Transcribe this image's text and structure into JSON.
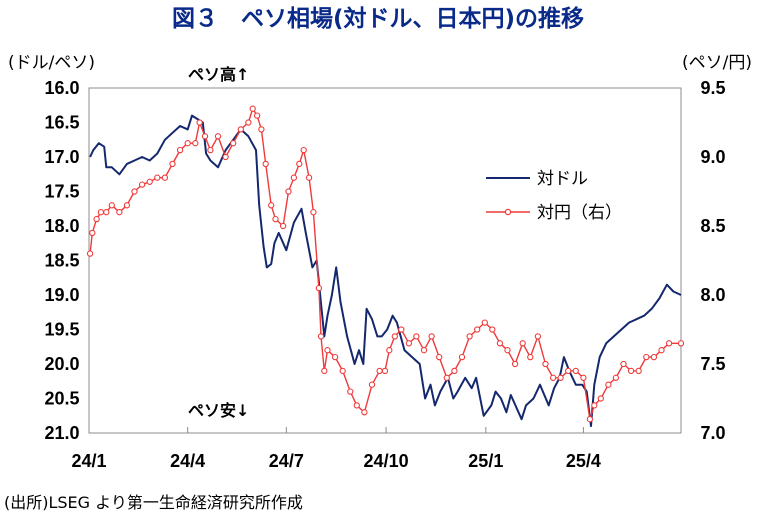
{
  "chart_data": {
    "type": "line",
    "title": "図３　ペソ相場(対ドル、日本円)の推移",
    "left_axis_unit": "(ドル/ペソ)",
    "right_axis_unit": "(ペソ/円)",
    "annotation_top": "ペソ高↑",
    "annotation_bottom": "ペソ安↓",
    "source": "(出所)LSEG より第一生命経済研究所作成",
    "left_axis": {
      "min": 16.0,
      "max": 21.0,
      "inverted": true,
      "ticks": [
        "16.0",
        "16.5",
        "17.0",
        "17.5",
        "18.0",
        "18.5",
        "19.0",
        "19.5",
        "20.0",
        "20.5",
        "21.0"
      ]
    },
    "right_axis": {
      "min": 7.0,
      "max": 9.5,
      "ticks": [
        "9.5",
        "9.0",
        "8.5",
        "8.0",
        "7.5",
        "7.0"
      ]
    },
    "x_axis": {
      "start": "2024-01-01",
      "end": "2025-06-30",
      "tick_labels": [
        {
          "date": "2024-01-01",
          "label": "24/1"
        },
        {
          "date": "2024-04-01",
          "label": "24/4"
        },
        {
          "date": "2024-07-01",
          "label": "24/7"
        },
        {
          "date": "2024-10-01",
          "label": "24/10"
        },
        {
          "date": "2025-01-01",
          "label": "25/1"
        },
        {
          "date": "2025-04-01",
          "label": "25/4"
        }
      ]
    },
    "grid": false,
    "legend_position": "right-center",
    "series": [
      {
        "name": "対ドル",
        "axis": "left",
        "color": "#14286e",
        "marker": "none",
        "points": [
          [
            "2024-01-02",
            17.0
          ],
          [
            "2024-01-05",
            16.9
          ],
          [
            "2024-01-10",
            16.8
          ],
          [
            "2024-01-15",
            16.85
          ],
          [
            "2024-01-17",
            17.15
          ],
          [
            "2024-01-22",
            17.15
          ],
          [
            "2024-01-29",
            17.25
          ],
          [
            "2024-02-05",
            17.1
          ],
          [
            "2024-02-12",
            17.05
          ],
          [
            "2024-02-19",
            17.0
          ],
          [
            "2024-02-26",
            17.05
          ],
          [
            "2024-03-04",
            16.95
          ],
          [
            "2024-03-11",
            16.75
          ],
          [
            "2024-03-18",
            16.65
          ],
          [
            "2024-03-25",
            16.55
          ],
          [
            "2024-04-01",
            16.6
          ],
          [
            "2024-04-05",
            16.4
          ],
          [
            "2024-04-10",
            16.45
          ],
          [
            "2024-04-15",
            16.5
          ],
          [
            "2024-04-18",
            16.95
          ],
          [
            "2024-04-22",
            17.05
          ],
          [
            "2024-04-29",
            17.15
          ],
          [
            "2024-05-06",
            16.9
          ],
          [
            "2024-05-13",
            16.75
          ],
          [
            "2024-05-20",
            16.6
          ],
          [
            "2024-05-27",
            16.7
          ],
          [
            "2024-06-03",
            16.9
          ],
          [
            "2024-06-06",
            17.7
          ],
          [
            "2024-06-10",
            18.3
          ],
          [
            "2024-06-13",
            18.6
          ],
          [
            "2024-06-17",
            18.55
          ],
          [
            "2024-06-20",
            18.25
          ],
          [
            "2024-06-24",
            18.1
          ],
          [
            "2024-07-01",
            18.35
          ],
          [
            "2024-07-08",
            17.95
          ],
          [
            "2024-07-15",
            17.75
          ],
          [
            "2024-07-19",
            18.1
          ],
          [
            "2024-07-25",
            18.6
          ],
          [
            "2024-07-29",
            18.5
          ],
          [
            "2024-08-05",
            19.6
          ],
          [
            "2024-08-08",
            19.3
          ],
          [
            "2024-08-12",
            19.0
          ],
          [
            "2024-08-16",
            18.6
          ],
          [
            "2024-08-20",
            19.1
          ],
          [
            "2024-08-26",
            19.6
          ],
          [
            "2024-09-02",
            20.0
          ],
          [
            "2024-09-06",
            19.8
          ],
          [
            "2024-09-10",
            20.0
          ],
          [
            "2024-09-13",
            19.2
          ],
          [
            "2024-09-18",
            19.35
          ],
          [
            "2024-09-23",
            19.6
          ],
          [
            "2024-09-27",
            19.6
          ],
          [
            "2024-10-02",
            19.5
          ],
          [
            "2024-10-07",
            19.3
          ],
          [
            "2024-10-11",
            19.4
          ],
          [
            "2024-10-18",
            19.8
          ],
          [
            "2024-10-25",
            19.9
          ],
          [
            "2024-11-01",
            20.0
          ],
          [
            "2024-11-06",
            20.5
          ],
          [
            "2024-11-11",
            20.3
          ],
          [
            "2024-11-15",
            20.6
          ],
          [
            "2024-11-20",
            20.4
          ],
          [
            "2024-11-27",
            20.2
          ],
          [
            "2024-12-02",
            20.5
          ],
          [
            "2024-12-06",
            20.4
          ],
          [
            "2024-12-13",
            20.2
          ],
          [
            "2024-12-19",
            20.35
          ],
          [
            "2024-12-23",
            20.2
          ],
          [
            "2024-12-30",
            20.75
          ],
          [
            "2025-01-06",
            20.6
          ],
          [
            "2025-01-10",
            20.4
          ],
          [
            "2025-01-15",
            20.5
          ],
          [
            "2025-01-20",
            20.7
          ],
          [
            "2025-01-24",
            20.45
          ],
          [
            "2025-02-03",
            20.8
          ],
          [
            "2025-02-07",
            20.6
          ],
          [
            "2025-02-14",
            20.5
          ],
          [
            "2025-02-20",
            20.3
          ],
          [
            "2025-02-28",
            20.6
          ],
          [
            "2025-03-05",
            20.35
          ],
          [
            "2025-03-10",
            20.2
          ],
          [
            "2025-03-14",
            19.9
          ],
          [
            "2025-03-19",
            20.1
          ],
          [
            "2025-03-25",
            20.3
          ],
          [
            "2025-03-31",
            20.3
          ],
          [
            "2025-04-04",
            20.4
          ],
          [
            "2025-04-08",
            20.9
          ],
          [
            "2025-04-11",
            20.3
          ],
          [
            "2025-04-16",
            19.9
          ],
          [
            "2025-04-22",
            19.7
          ],
          [
            "2025-04-29",
            19.6
          ],
          [
            "2025-05-06",
            19.5
          ],
          [
            "2025-05-13",
            19.4
          ],
          [
            "2025-05-20",
            19.35
          ],
          [
            "2025-05-27",
            19.3
          ],
          [
            "2025-06-03",
            19.2
          ],
          [
            "2025-06-10",
            19.05
          ],
          [
            "2025-06-17",
            18.85
          ],
          [
            "2025-06-23",
            18.95
          ],
          [
            "2025-06-30",
            19.0
          ]
        ]
      },
      {
        "name": "対円（右）",
        "axis": "right",
        "color": "#ee3a3a",
        "marker": "circle",
        "points": [
          [
            "2024-01-02",
            8.3
          ],
          [
            "2024-01-04",
            8.45
          ],
          [
            "2024-01-08",
            8.55
          ],
          [
            "2024-01-12",
            8.6
          ],
          [
            "2024-01-17",
            8.6
          ],
          [
            "2024-01-22",
            8.65
          ],
          [
            "2024-01-29",
            8.6
          ],
          [
            "2024-02-05",
            8.65
          ],
          [
            "2024-02-12",
            8.75
          ],
          [
            "2024-02-19",
            8.8
          ],
          [
            "2024-02-26",
            8.82
          ],
          [
            "2024-03-04",
            8.85
          ],
          [
            "2024-03-11",
            8.85
          ],
          [
            "2024-03-18",
            8.95
          ],
          [
            "2024-03-25",
            9.05
          ],
          [
            "2024-04-01",
            9.1
          ],
          [
            "2024-04-08",
            9.1
          ],
          [
            "2024-04-12",
            9.25
          ],
          [
            "2024-04-17",
            9.15
          ],
          [
            "2024-04-22",
            9.05
          ],
          [
            "2024-04-29",
            9.15
          ],
          [
            "2024-05-06",
            9.0
          ],
          [
            "2024-05-13",
            9.1
          ],
          [
            "2024-05-20",
            9.2
          ],
          [
            "2024-05-27",
            9.25
          ],
          [
            "2024-05-31",
            9.35
          ],
          [
            "2024-06-04",
            9.3
          ],
          [
            "2024-06-08",
            9.2
          ],
          [
            "2024-06-12",
            8.95
          ],
          [
            "2024-06-17",
            8.65
          ],
          [
            "2024-06-21",
            8.55
          ],
          [
            "2024-06-28",
            8.5
          ],
          [
            "2024-07-03",
            8.75
          ],
          [
            "2024-07-08",
            8.85
          ],
          [
            "2024-07-13",
            8.95
          ],
          [
            "2024-07-17",
            9.05
          ],
          [
            "2024-07-22",
            8.85
          ],
          [
            "2024-07-26",
            8.6
          ],
          [
            "2024-07-31",
            8.05
          ],
          [
            "2024-08-02",
            7.7
          ],
          [
            "2024-08-05",
            7.45
          ],
          [
            "2024-08-08",
            7.6
          ],
          [
            "2024-08-15",
            7.55
          ],
          [
            "2024-08-22",
            7.45
          ],
          [
            "2024-08-29",
            7.3
          ],
          [
            "2024-09-04",
            7.2
          ],
          [
            "2024-09-11",
            7.15
          ],
          [
            "2024-09-18",
            7.35
          ],
          [
            "2024-09-25",
            7.45
          ],
          [
            "2024-09-30",
            7.45
          ],
          [
            "2024-10-04",
            7.6
          ],
          [
            "2024-10-09",
            7.7
          ],
          [
            "2024-10-15",
            7.75
          ],
          [
            "2024-10-22",
            7.65
          ],
          [
            "2024-10-29",
            7.7
          ],
          [
            "2024-11-05",
            7.6
          ],
          [
            "2024-11-12",
            7.7
          ],
          [
            "2024-11-19",
            7.55
          ],
          [
            "2024-11-26",
            7.4
          ],
          [
            "2024-12-03",
            7.45
          ],
          [
            "2024-12-10",
            7.55
          ],
          [
            "2024-12-17",
            7.7
          ],
          [
            "2024-12-24",
            7.75
          ],
          [
            "2024-12-31",
            7.8
          ],
          [
            "2025-01-07",
            7.75
          ],
          [
            "2025-01-14",
            7.65
          ],
          [
            "2025-01-21",
            7.6
          ],
          [
            "2025-01-28",
            7.5
          ],
          [
            "2025-02-04",
            7.65
          ],
          [
            "2025-02-11",
            7.55
          ],
          [
            "2025-02-18",
            7.7
          ],
          [
            "2025-02-25",
            7.5
          ],
          [
            "2025-03-04",
            7.4
          ],
          [
            "2025-03-11",
            7.4
          ],
          [
            "2025-03-18",
            7.45
          ],
          [
            "2025-03-25",
            7.45
          ],
          [
            "2025-04-01",
            7.4
          ],
          [
            "2025-04-07",
            7.1
          ],
          [
            "2025-04-11",
            7.2
          ],
          [
            "2025-04-17",
            7.25
          ],
          [
            "2025-04-24",
            7.35
          ],
          [
            "2025-05-01",
            7.4
          ],
          [
            "2025-05-08",
            7.5
          ],
          [
            "2025-05-15",
            7.45
          ],
          [
            "2025-05-22",
            7.45
          ],
          [
            "2025-05-29",
            7.55
          ],
          [
            "2025-06-05",
            7.55
          ],
          [
            "2025-06-12",
            7.6
          ],
          [
            "2025-06-19",
            7.65
          ],
          [
            "2025-06-30",
            7.65
          ]
        ]
      }
    ]
  }
}
